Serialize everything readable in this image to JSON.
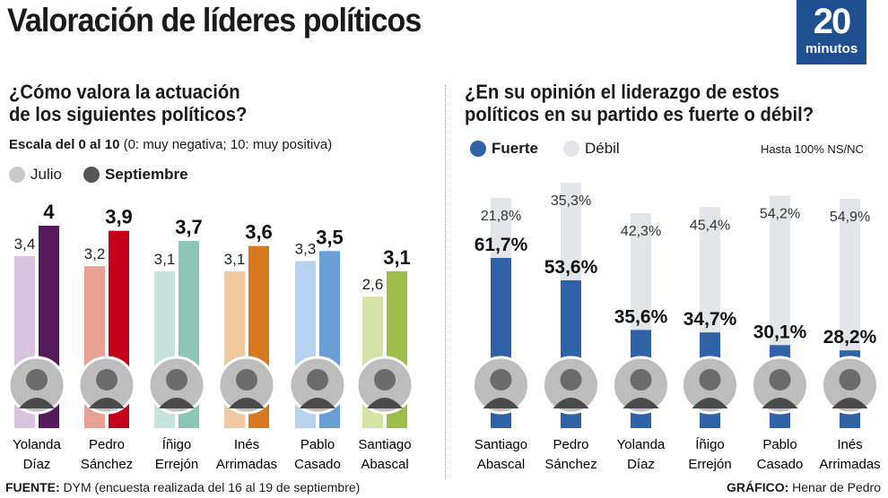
{
  "title": "Valoración de líderes políticos",
  "logo": {
    "number": "20",
    "word": "minutos",
    "color": "#1d4f91"
  },
  "left": {
    "question_line1": "¿Cómo valora la actuación",
    "question_line2": "de los siguientes políticos?",
    "scale_bold": "Escala del 0 al 10",
    "scale_rest": " (0: muy negativa; 10: muy positiva)",
    "legend": [
      {
        "label": "Julio",
        "color": "#c9c9c9"
      },
      {
        "label": "Septiembre",
        "color": "#555555"
      }
    ]
  },
  "right": {
    "question_line1": "¿En su opinión el liderazgo de estos",
    "question_line2": "políticos en su partido es fuerte o débil?",
    "legend": [
      {
        "label": "Fuerte",
        "color": "#2f62a6"
      },
      {
        "label": "Débil",
        "color": "#e4e5e9"
      }
    ],
    "note": "Hasta 100% NS/NC"
  },
  "chart_data": [
    {
      "type": "bar",
      "series": [
        {
          "name": "Julio",
          "values": [
            3.4,
            3.2,
            3.1,
            3.1,
            3.3,
            2.6
          ]
        },
        {
          "name": "Septiembre",
          "values": [
            4,
            3.9,
            3.7,
            3.6,
            3.5,
            3.1
          ]
        }
      ],
      "categories": [
        [
          "Yolanda",
          "Díaz"
        ],
        [
          "Pedro",
          "Sánchez"
        ],
        [
          "Íñigo",
          "Errejón"
        ],
        [
          "Inés",
          "Arrimadas"
        ],
        [
          "Pablo",
          "Casado"
        ],
        [
          "Santiago",
          "Abascal"
        ]
      ],
      "labels": {
        "Julio": [
          "3,4",
          "3,2",
          "3,1",
          "3,1",
          "3,3",
          "2,6"
        ],
        "Septiembre": [
          "4",
          "3,9",
          "3,7",
          "3,6",
          "3,5",
          "3,1"
        ]
      },
      "colors": {
        "Julio": [
          "#d8c4df",
          "#e9a196",
          "#c6e3dc",
          "#f0c9a0",
          "#b8d3ef",
          "#d3e4a6"
        ],
        "Septiembre": [
          "#561a5c",
          "#c4001a",
          "#8ec6b5",
          "#d8791f",
          "#6a9fd6",
          "#9bbf48"
        ]
      },
      "ylim": [
        0,
        10
      ]
    },
    {
      "type": "bar",
      "stacked": true,
      "categories": [
        [
          "Santiago",
          "Abascal"
        ],
        [
          "Pedro",
          "Sánchez"
        ],
        [
          "Yolanda",
          "Díaz"
        ],
        [
          "Íñigo",
          "Errejón"
        ],
        [
          "Pablo",
          "Casado"
        ],
        [
          "Inés",
          "Arrimadas"
        ]
      ],
      "series": [
        {
          "name": "Fuerte",
          "values": [
            61.7,
            53.6,
            35.6,
            34.7,
            30.1,
            28.2
          ],
          "labels": [
            "61,7%",
            "53,6%",
            "35,6%",
            "34,7%",
            "30,1%",
            "28,2%"
          ],
          "color": "#2f62a6"
        },
        {
          "name": "Débil",
          "values": [
            21.8,
            35.3,
            42.3,
            45.4,
            54.2,
            54.9
          ],
          "labels": [
            "21,8%",
            "35,3%",
            "42,3%",
            "45,4%",
            "54,2%",
            "54,9%"
          ],
          "color": "#e4e5e9"
        }
      ],
      "ylim": [
        0,
        100
      ]
    }
  ],
  "footer": {
    "source_label": "FUENTE:",
    "source_text": " DYM (encuesta realizada del 16 al 19 de septiembre)",
    "credit_label": "GRÁFICO:",
    "credit_text": " Henar de Pedro"
  }
}
